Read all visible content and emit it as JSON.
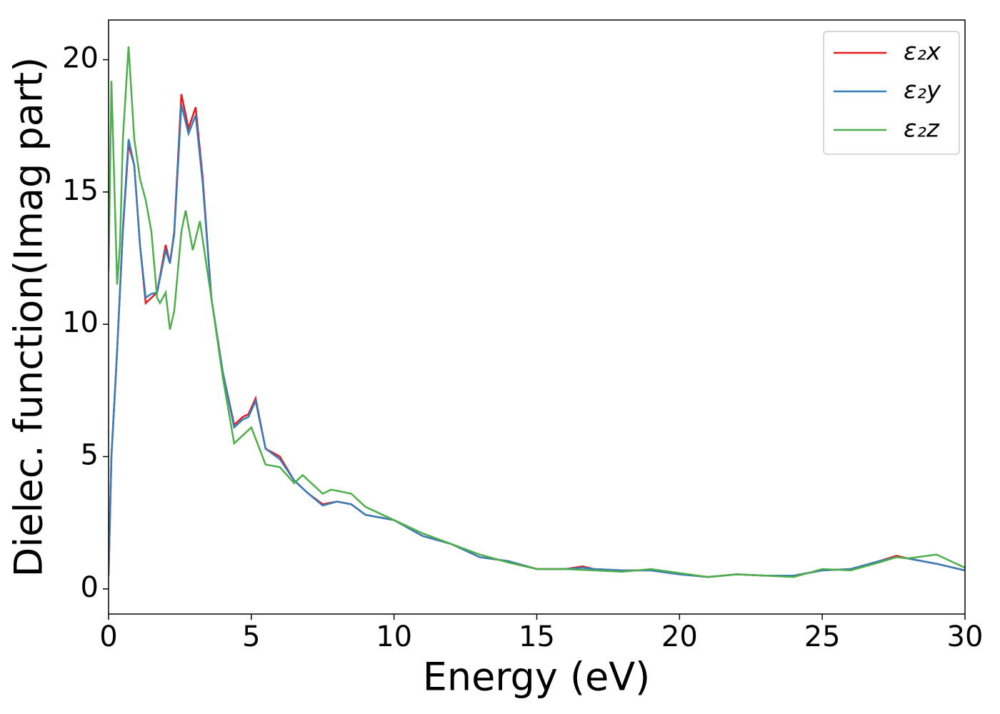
{
  "chart_data": {
    "type": "line",
    "xlabel": "Energy (eV)",
    "ylabel": "Dielec. function(Imag part)",
    "xlim": [
      0,
      30
    ],
    "ylim": [
      -0.95,
      21.5
    ],
    "xticks": [
      0,
      5,
      10,
      15,
      20,
      25,
      30
    ],
    "yticks": [
      0,
      5,
      10,
      15,
      20
    ],
    "legend": "upper right",
    "series": [
      {
        "name": "ε₂x",
        "color": "#e41a1c",
        "x": [
          0,
          0.1,
          0.3,
          0.5,
          0.7,
          0.9,
          1.1,
          1.3,
          1.5,
          1.7,
          2.0,
          2.15,
          2.3,
          2.55,
          2.8,
          3.05,
          3.3,
          3.6,
          4.0,
          4.4,
          4.7,
          4.9,
          5.15,
          5.5,
          6.0,
          6.5,
          7.0,
          7.5,
          8.0,
          8.5,
          9,
          10,
          11,
          12,
          13,
          14,
          15,
          16,
          16.6,
          17,
          18,
          19,
          20,
          21,
          22,
          23,
          24,
          25,
          26,
          27,
          27.6,
          28,
          29,
          30
        ],
        "values": [
          0.5,
          5,
          9,
          13.5,
          16.8,
          16,
          13,
          10.8,
          11,
          11.2,
          13,
          12.3,
          13.5,
          18.7,
          17.4,
          18.2,
          15.5,
          11,
          8.2,
          6.2,
          6.5,
          6.6,
          7.2,
          5.3,
          5.0,
          4.1,
          3.6,
          3.2,
          3.3,
          3.2,
          2.8,
          2.6,
          2.0,
          1.7,
          1.2,
          1.05,
          0.75,
          0.75,
          0.85,
          0.75,
          0.7,
          0.7,
          0.55,
          0.45,
          0.55,
          0.5,
          0.5,
          0.7,
          0.75,
          1.05,
          1.25,
          1.15,
          0.95,
          0.7
        ]
      },
      {
        "name": "ε₂y",
        "color": "#377eb8",
        "x": [
          0,
          0.1,
          0.3,
          0.5,
          0.7,
          0.9,
          1.1,
          1.3,
          1.5,
          1.7,
          2.0,
          2.15,
          2.3,
          2.55,
          2.8,
          3.05,
          3.3,
          3.6,
          4.0,
          4.4,
          4.7,
          4.9,
          5.15,
          5.5,
          6.0,
          6.5,
          7.0,
          7.5,
          8.0,
          8.5,
          9,
          10,
          11,
          12,
          13,
          14,
          15,
          16,
          16.6,
          17,
          18,
          19,
          20,
          21,
          22,
          23,
          24,
          25,
          26,
          27,
          27.6,
          28,
          29,
          30
        ],
        "values": [
          0.5,
          5,
          9,
          13.6,
          17.0,
          16,
          13,
          11.0,
          11.15,
          11.2,
          12.8,
          12.3,
          13.4,
          18.3,
          17.2,
          17.9,
          15.3,
          11,
          8.2,
          6.1,
          6.4,
          6.5,
          7.1,
          5.3,
          4.9,
          4.1,
          3.6,
          3.15,
          3.3,
          3.2,
          2.8,
          2.6,
          2.0,
          1.7,
          1.2,
          1.05,
          0.75,
          0.75,
          0.8,
          0.75,
          0.7,
          0.7,
          0.55,
          0.45,
          0.55,
          0.5,
          0.5,
          0.7,
          0.75,
          1.05,
          1.2,
          1.15,
          0.95,
          0.7
        ]
      },
      {
        "name": "ε₂z",
        "color": "#4daf4a",
        "x": [
          0,
          0.1,
          0.3,
          0.4,
          0.5,
          0.7,
          0.9,
          1.1,
          1.3,
          1.5,
          1.7,
          1.8,
          2.0,
          2.15,
          2.3,
          2.55,
          2.7,
          2.95,
          3.2,
          3.6,
          4.0,
          4.4,
          4.7,
          5.0,
          5.5,
          6.0,
          6.5,
          6.8,
          7.5,
          7.8,
          8.5,
          9,
          10,
          11,
          12,
          13,
          14,
          15,
          16,
          17,
          18,
          19,
          20,
          21,
          22,
          23,
          24,
          25,
          26,
          27,
          27.6,
          28,
          29,
          30
        ],
        "values": [
          12,
          19.2,
          11.5,
          13,
          17,
          20.5,
          17,
          15.5,
          14.7,
          13.5,
          11,
          10.8,
          11.2,
          9.8,
          10.5,
          13.5,
          14.3,
          12.8,
          13.9,
          11,
          8,
          5.5,
          5.8,
          6.1,
          4.7,
          4.6,
          4.0,
          4.3,
          3.6,
          3.75,
          3.6,
          3.1,
          2.6,
          2.1,
          1.7,
          1.3,
          1.0,
          0.75,
          0.75,
          0.7,
          0.65,
          0.75,
          0.6,
          0.45,
          0.55,
          0.5,
          0.45,
          0.75,
          0.7,
          1.0,
          1.2,
          1.15,
          1.3,
          0.8
        ]
      }
    ]
  }
}
